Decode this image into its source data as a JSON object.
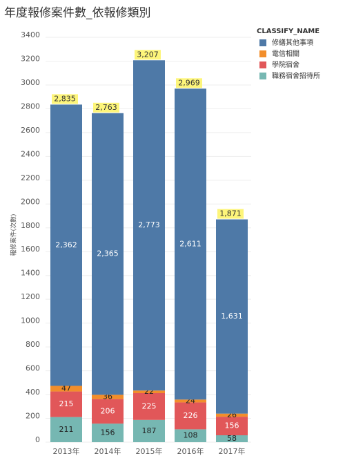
{
  "chart_data": {
    "type": "stacked_bar",
    "title": "年度報修案件數_依報修類別",
    "y_label": "報修案件(次數)",
    "legend_title": "CLASSIFY_NAME",
    "categories": [
      "2013年",
      "2014年",
      "2015年",
      "2016年",
      "2017年"
    ],
    "series": [
      {
        "name": "修繕其他事項",
        "color": "#4e79a7",
        "values": [
          2362,
          2365,
          2773,
          2611,
          1631
        ],
        "value_labels": [
          "2,362",
          "2,365",
          "2,773",
          "2,611",
          "1,631"
        ]
      },
      {
        "name": "電信相關",
        "color": "#f28e2b",
        "values": [
          47,
          36,
          22,
          24,
          26
        ]
      },
      {
        "name": "學院宿舍",
        "color": "#e15759",
        "values": [
          215,
          206,
          225,
          226,
          156
        ]
      },
      {
        "name": "職務宿舍招待所",
        "color": "#76b7b2",
        "values": [
          211,
          156,
          187,
          108,
          58
        ]
      }
    ],
    "totals": [
      2835,
      2763,
      3207,
      2969,
      1871
    ],
    "total_labels": [
      "2,835",
      "2,763",
      "3,207",
      "2,969",
      "1,871"
    ],
    "ylim": [
      0,
      3400
    ],
    "yticks": [
      0,
      200,
      400,
      600,
      800,
      1000,
      1200,
      1400,
      1600,
      1800,
      2000,
      2200,
      2400,
      2600,
      2800,
      3000,
      3200,
      3400
    ],
    "grid": true
  }
}
